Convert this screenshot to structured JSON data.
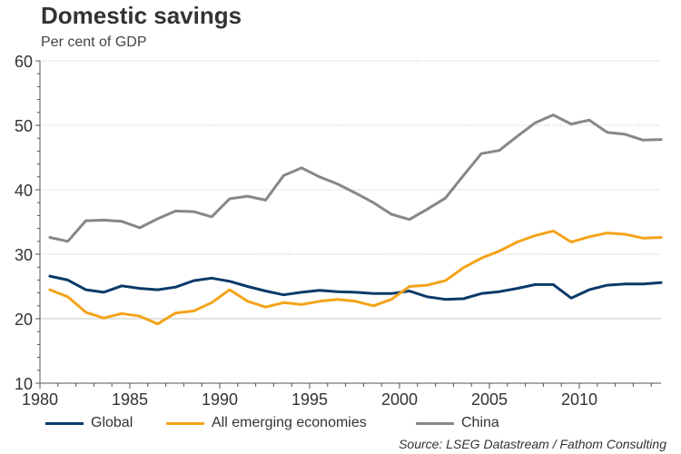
{
  "title": "Domestic savings",
  "subtitle": "Per cent of GDP",
  "source": "Source: LSEG Datastream / Fathom Consulting",
  "legend": [
    {
      "label": "Global",
      "color": "#0b3a6a"
    },
    {
      "label": "All emerging economies",
      "color": "#f5a31a"
    },
    {
      "label": "China",
      "color": "#878787"
    }
  ],
  "chart_data": {
    "type": "line",
    "title": "Domestic savings",
    "subtitle": "Per cent of GDP",
    "xlabel": "",
    "ylabel": "Per cent of GDP",
    "xlim": [
      1980,
      2014.7
    ],
    "ylim": [
      10,
      60
    ],
    "x_ticks": [
      1980,
      1985,
      1990,
      1995,
      2000,
      2005,
      2010
    ],
    "y_ticks": [
      10,
      20,
      30,
      40,
      50,
      60
    ],
    "grid": "horizontal",
    "legend_position": "bottom",
    "x": [
      1980,
      1981,
      1982,
      1983,
      1984,
      1985,
      1986,
      1987,
      1988,
      1989,
      1990,
      1991,
      1992,
      1993,
      1994,
      1995,
      1996,
      1997,
      1998,
      1999,
      2000,
      2001,
      2002,
      2003,
      2004,
      2005,
      2006,
      2007,
      2008,
      2009,
      2010,
      2011,
      2012,
      2013,
      2014
    ],
    "series": [
      {
        "name": "Global",
        "color": "#0b3a6a",
        "values": [
          26.6,
          26.0,
          24.5,
          24.1,
          25.1,
          24.7,
          24.5,
          24.9,
          25.9,
          26.3,
          25.8,
          25.0,
          24.3,
          23.7,
          24.1,
          24.4,
          24.2,
          24.1,
          23.9,
          23.9,
          24.3,
          23.4,
          23.0,
          23.1,
          23.9,
          24.2,
          24.7,
          25.3,
          25.3,
          23.2,
          24.5,
          25.2,
          25.4,
          25.4,
          25.6
        ]
      },
      {
        "name": "All emerging economies",
        "color": "#f5a31a",
        "values": [
          24.5,
          23.4,
          21.0,
          20.1,
          20.8,
          20.4,
          19.2,
          20.9,
          21.2,
          22.5,
          24.5,
          22.7,
          21.8,
          22.5,
          22.2,
          22.7,
          23.0,
          22.7,
          22.0,
          23.0,
          25.0,
          25.2,
          25.9,
          27.9,
          29.4,
          30.5,
          31.9,
          32.9,
          33.6,
          31.9,
          32.7,
          33.3,
          33.1,
          32.5,
          32.6
        ]
      },
      {
        "name": "China",
        "color": "#878787",
        "values": [
          32.6,
          32.0,
          35.2,
          35.3,
          35.1,
          34.1,
          35.5,
          36.7,
          36.6,
          35.8,
          38.6,
          39.0,
          38.4,
          42.2,
          43.4,
          42.0,
          40.9,
          39.5,
          38.0,
          36.2,
          35.4,
          37.0,
          38.7,
          42.2,
          45.6,
          46.1,
          48.3,
          50.4,
          51.6,
          50.2,
          50.8,
          48.9,
          48.6,
          47.7,
          47.8
        ]
      }
    ]
  }
}
